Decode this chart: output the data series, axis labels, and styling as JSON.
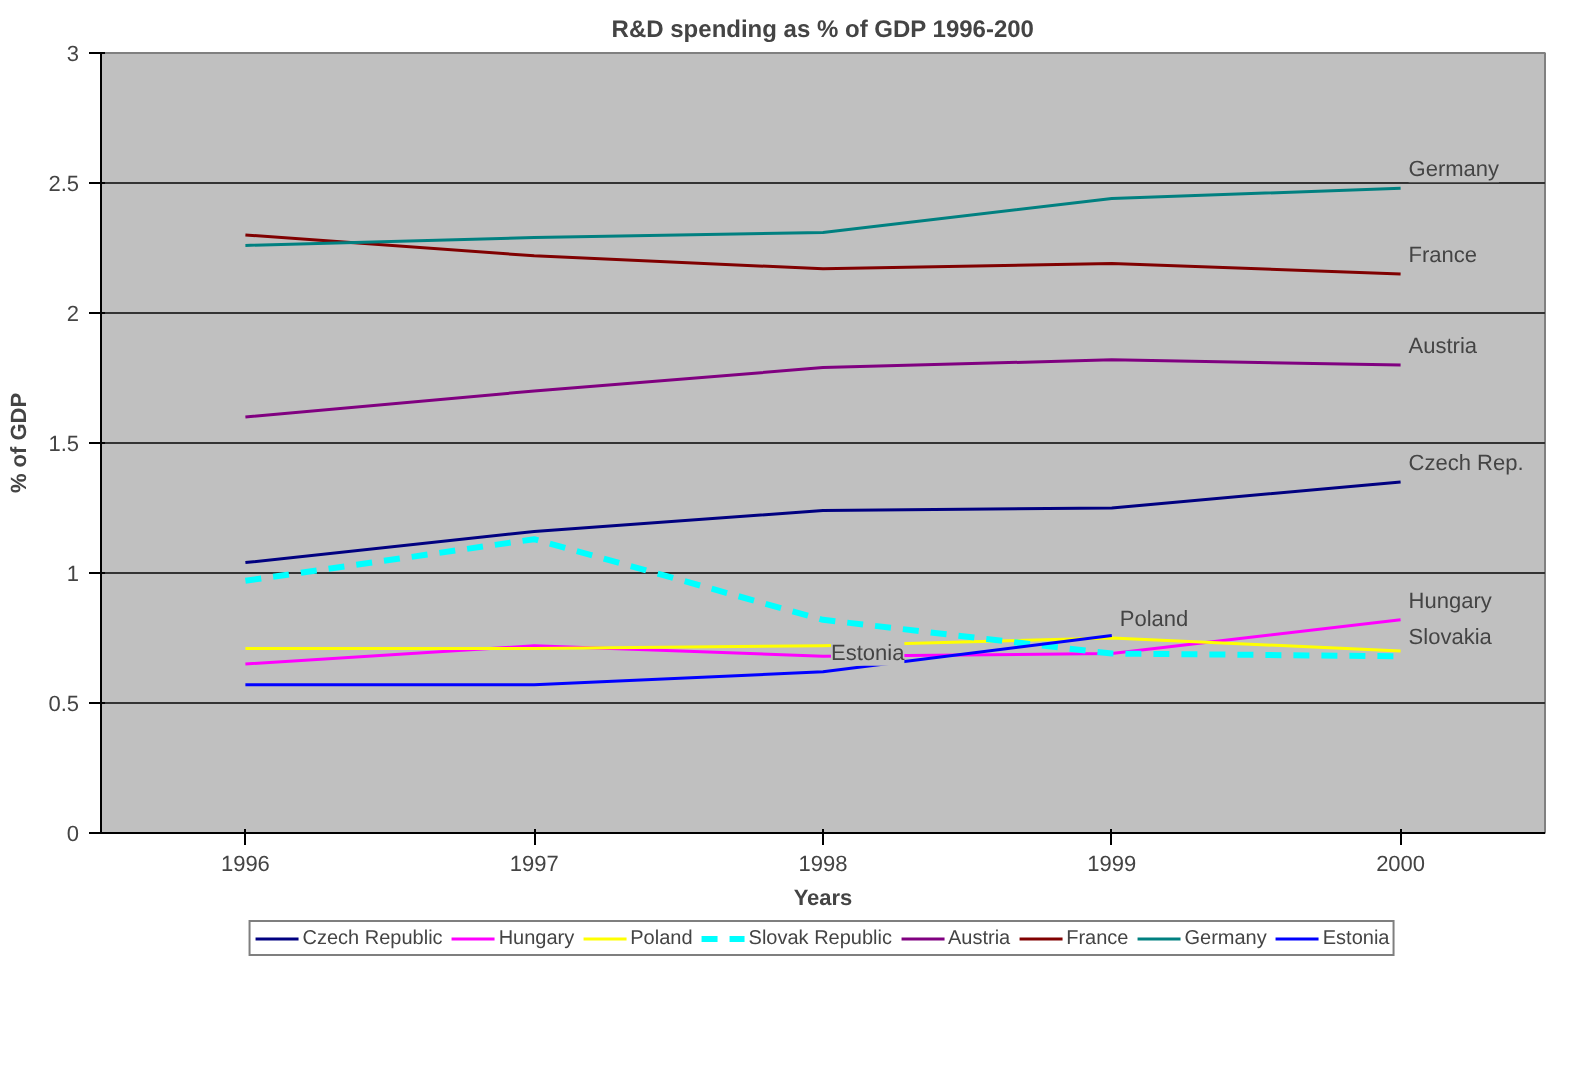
{
  "chart_data": {
    "type": "line",
    "title": "R&D spending as % of GDP 1996-200",
    "xlabel": "Years",
    "ylabel": "% of GDP",
    "categories": [
      "1996",
      "1997",
      "1998",
      "1999",
      "2000"
    ],
    "ylim": [
      0,
      3
    ],
    "yticks": [
      0,
      0.5,
      1,
      1.5,
      2,
      2.5,
      3
    ],
    "grid": "y",
    "legend": "bottom",
    "marker": "none",
    "series": [
      {
        "name": "Czech Republic",
        "color": "#000080",
        "values": [
          1.04,
          1.16,
          1.24,
          1.25,
          1.35
        ]
      },
      {
        "name": "Hungary",
        "color": "#ff00ff",
        "values": [
          0.65,
          0.72,
          0.68,
          0.69,
          0.82
        ]
      },
      {
        "name": "Poland",
        "color": "#ffff00",
        "values": [
          0.71,
          0.71,
          0.72,
          0.75,
          0.7
        ]
      },
      {
        "name": "Slovak Republic",
        "color": "#00ffff",
        "line_style": "dashed",
        "values": [
          0.97,
          1.13,
          0.82,
          0.69,
          0.68
        ]
      },
      {
        "name": "Austria",
        "color": "#800080",
        "values": [
          1.6,
          1.7,
          1.79,
          1.82,
          1.8
        ]
      },
      {
        "name": "France",
        "color": "#800000",
        "values": [
          2.3,
          2.22,
          2.17,
          2.19,
          2.15
        ]
      },
      {
        "name": "Germany",
        "color": "#008080",
        "values": [
          2.26,
          2.29,
          2.31,
          2.44,
          2.48
        ]
      },
      {
        "name": "Estonia",
        "color": "#0000ff",
        "values": [
          0.57,
          0.57,
          0.62,
          0.76,
          null
        ]
      }
    ],
    "annotations": [
      {
        "text": "Germany",
        "x": "2000",
        "y": 2.48
      },
      {
        "text": "France",
        "x": "2000",
        "y": 2.15
      },
      {
        "text": "Austria",
        "x": "2000",
        "y": 1.8
      },
      {
        "text": "Czech Rep.",
        "x": "2000",
        "y": 1.35
      },
      {
        "text": "Hungary",
        "x": "2000",
        "y": 0.82
      },
      {
        "text": "Slovakia",
        "x": "2000",
        "y": 0.68
      },
      {
        "text": "Poland",
        "x": "1999",
        "y": 0.75
      },
      {
        "text": "Estonia",
        "x": "1998",
        "y": 0.62
      }
    ]
  }
}
